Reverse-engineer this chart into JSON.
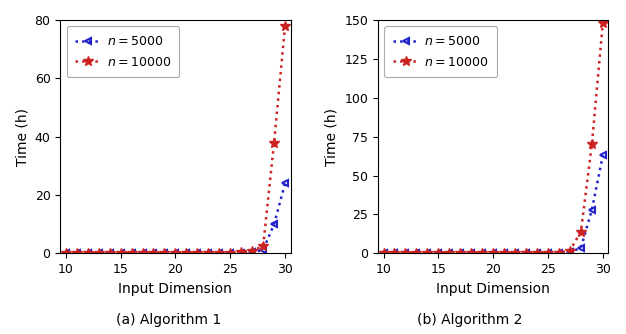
{
  "x": [
    10,
    11,
    12,
    13,
    14,
    15,
    16,
    17,
    18,
    19,
    20,
    21,
    22,
    23,
    24,
    25,
    26,
    27,
    28,
    29,
    30
  ],
  "alg1_n5000": [
    0.001,
    0.001,
    0.001,
    0.001,
    0.001,
    0.002,
    0.002,
    0.003,
    0.004,
    0.005,
    0.007,
    0.01,
    0.015,
    0.02,
    0.03,
    0.06,
    0.1,
    0.3,
    1.2,
    10.0,
    24.0
  ],
  "alg1_n10000": [
    0.002,
    0.002,
    0.003,
    0.003,
    0.004,
    0.005,
    0.007,
    0.01,
    0.013,
    0.017,
    0.022,
    0.03,
    0.04,
    0.06,
    0.09,
    0.15,
    0.3,
    0.8,
    2.5,
    38.0,
    78.0
  ],
  "alg2_n5000": [
    0.001,
    0.001,
    0.001,
    0.001,
    0.002,
    0.002,
    0.003,
    0.004,
    0.006,
    0.008,
    0.01,
    0.015,
    0.02,
    0.03,
    0.05,
    0.1,
    0.2,
    0.8,
    3.5,
    28.0,
    63.0
  ],
  "alg2_n10000": [
    0.002,
    0.002,
    0.003,
    0.004,
    0.005,
    0.007,
    0.01,
    0.013,
    0.018,
    0.025,
    0.033,
    0.045,
    0.06,
    0.09,
    0.13,
    0.22,
    0.5,
    1.8,
    14.0,
    70.0,
    148.0
  ],
  "color_5000": "#2222cc",
  "color_10000": "#cc2222",
  "alg1_ylim": [
    0,
    80
  ],
  "alg1_yticks": [
    0,
    20,
    40,
    60,
    80
  ],
  "alg2_ylim": [
    0,
    150
  ],
  "alg2_yticks": [
    0,
    25,
    50,
    75,
    100,
    125,
    150
  ],
  "xlim": [
    9.5,
    30.5
  ],
  "xticks": [
    10,
    15,
    20,
    25,
    30
  ],
  "xlabel": "Input Dimension",
  "ylabel": "Time (h)",
  "label_5000": "$n = 5000$",
  "label_10000": "$n = 10000$",
  "caption_a": "(a) Algorithm 1",
  "caption_b": "(b) Algorithm 2"
}
